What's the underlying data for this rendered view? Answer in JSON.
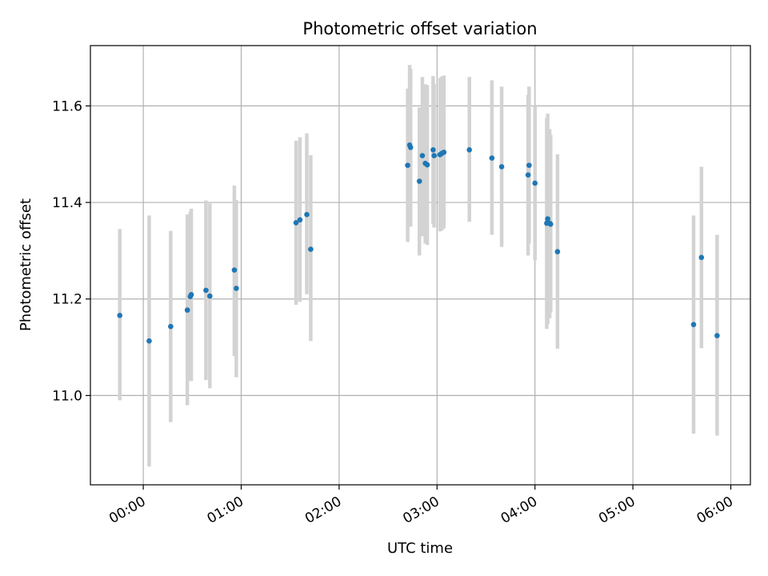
{
  "chart_data": {
    "type": "scatter",
    "title": "Photometric offset variation",
    "xlabel": "UTC time",
    "ylabel": "Photometric offset",
    "x_unit": "hours UTC",
    "xlim": [
      -0.54,
      6.2
    ],
    "ylim": [
      10.815,
      11.725
    ],
    "xticks": [
      {
        "value": 0,
        "label": "00:00"
      },
      {
        "value": 1,
        "label": "01:00"
      },
      {
        "value": 2,
        "label": "02:00"
      },
      {
        "value": 3,
        "label": "03:00"
      },
      {
        "value": 4,
        "label": "04:00"
      },
      {
        "value": 5,
        "label": "05:00"
      },
      {
        "value": 6,
        "label": "06:00"
      }
    ],
    "yticks": [
      {
        "value": 11.0,
        "label": "11.0"
      },
      {
        "value": 11.2,
        "label": "11.2"
      },
      {
        "value": 11.4,
        "label": "11.4"
      },
      {
        "value": 11.6,
        "label": "11.6"
      }
    ],
    "grid": true,
    "colors": {
      "marker": "#1f77b4",
      "errorbar": "#d3d3d3",
      "grid": "#b0b0b0"
    },
    "points": [
      {
        "x": -0.24,
        "y": 11.166,
        "lo": 10.99,
        "hi": 11.345
      },
      {
        "x": 0.06,
        "y": 11.113,
        "lo": 10.853,
        "hi": 11.373
      },
      {
        "x": 0.28,
        "y": 11.143,
        "lo": 10.945,
        "hi": 11.341
      },
      {
        "x": 0.45,
        "y": 11.177,
        "lo": 10.98,
        "hi": 11.375
      },
      {
        "x": 0.48,
        "y": 11.205,
        "lo": 11.03,
        "hi": 11.381
      },
      {
        "x": 0.49,
        "y": 11.209,
        "lo": 11.03,
        "hi": 11.387
      },
      {
        "x": 0.64,
        "y": 11.218,
        "lo": 11.032,
        "hi": 11.404
      },
      {
        "x": 0.68,
        "y": 11.206,
        "lo": 11.015,
        "hi": 11.398
      },
      {
        "x": 0.93,
        "y": 11.26,
        "lo": 11.082,
        "hi": 11.435
      },
      {
        "x": 0.95,
        "y": 11.222,
        "lo": 11.038,
        "hi": 11.405
      },
      {
        "x": 1.56,
        "y": 11.358,
        "lo": 11.188,
        "hi": 11.528
      },
      {
        "x": 1.6,
        "y": 11.364,
        "lo": 11.194,
        "hi": 11.535
      },
      {
        "x": 1.67,
        "y": 11.375,
        "lo": 11.21,
        "hi": 11.543
      },
      {
        "x": 1.71,
        "y": 11.303,
        "lo": 11.113,
        "hi": 11.498
      },
      {
        "x": 2.7,
        "y": 11.477,
        "lo": 11.318,
        "hi": 11.636
      },
      {
        "x": 2.72,
        "y": 11.519,
        "lo": 11.355,
        "hi": 11.685
      },
      {
        "x": 2.73,
        "y": 11.514,
        "lo": 11.35,
        "hi": 11.677
      },
      {
        "x": 2.82,
        "y": 11.444,
        "lo": 11.29,
        "hi": 11.597
      },
      {
        "x": 2.85,
        "y": 11.497,
        "lo": 11.33,
        "hi": 11.66
      },
      {
        "x": 2.88,
        "y": 11.481,
        "lo": 11.315,
        "hi": 11.645
      },
      {
        "x": 2.9,
        "y": 11.478,
        "lo": 11.312,
        "hi": 11.643
      },
      {
        "x": 2.96,
        "y": 11.509,
        "lo": 11.355,
        "hi": 11.662
      },
      {
        "x": 2.97,
        "y": 11.497,
        "lo": 11.348,
        "hi": 11.646
      },
      {
        "x": 3.03,
        "y": 11.499,
        "lo": 11.34,
        "hi": 11.658
      },
      {
        "x": 3.05,
        "y": 11.502,
        "lo": 11.342,
        "hi": 11.661
      },
      {
        "x": 3.07,
        "y": 11.504,
        "lo": 11.346,
        "hi": 11.663
      },
      {
        "x": 3.33,
        "y": 11.509,
        "lo": 11.36,
        "hi": 11.66
      },
      {
        "x": 3.56,
        "y": 11.492,
        "lo": 11.333,
        "hi": 11.653
      },
      {
        "x": 3.66,
        "y": 11.474,
        "lo": 11.308,
        "hi": 11.64
      },
      {
        "x": 3.93,
        "y": 11.457,
        "lo": 11.29,
        "hi": 11.623
      },
      {
        "x": 3.94,
        "y": 11.477,
        "lo": 11.315,
        "hi": 11.64
      },
      {
        "x": 4.0,
        "y": 11.44,
        "lo": 11.28,
        "hi": 11.6
      },
      {
        "x": 4.12,
        "y": 11.357,
        "lo": 11.138,
        "hi": 11.575
      },
      {
        "x": 4.13,
        "y": 11.366,
        "lo": 11.148,
        "hi": 11.584
      },
      {
        "x": 4.15,
        "y": 11.357,
        "lo": 11.16,
        "hi": 11.552
      },
      {
        "x": 4.16,
        "y": 11.355,
        "lo": 11.172,
        "hi": 11.54
      },
      {
        "x": 4.23,
        "y": 11.298,
        "lo": 11.097,
        "hi": 11.5
      },
      {
        "x": 5.62,
        "y": 11.147,
        "lo": 10.921,
        "hi": 11.373
      },
      {
        "x": 5.7,
        "y": 11.286,
        "lo": 11.098,
        "hi": 11.474
      },
      {
        "x": 5.86,
        "y": 11.124,
        "lo": 10.917,
        "hi": 11.333
      }
    ]
  }
}
